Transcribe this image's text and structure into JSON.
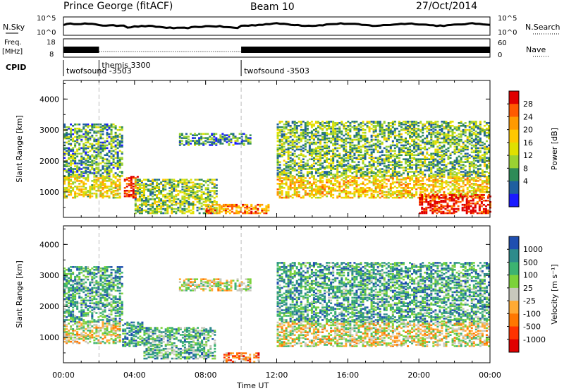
{
  "header": {
    "station": "Prince George (fitACF)",
    "beam": "Beam 10",
    "date": "27/Oct/2014"
  },
  "status_panels": {
    "nsky": {
      "left_label": "N.Sky",
      "right_label": "N.Search",
      "ticks_left": [
        "10^5",
        "10^0"
      ],
      "ticks_right": [
        "10^5",
        "10^0"
      ]
    },
    "freq": {
      "left_label_1": "Freq.",
      "left_label_2": "[MHz]",
      "right_label": "Nave",
      "ticks_left": [
        "18",
        "8"
      ],
      "ticks_right": [
        "60",
        "0"
      ]
    },
    "cpid": {
      "label": "CPID",
      "segments": [
        {
          "name": "twofsound -3503",
          "start": 0,
          "end": 2
        },
        {
          "name": "themis 3300",
          "start": 2,
          "end": 10
        },
        {
          "name": "twofsound -3503",
          "start": 10,
          "end": 24
        }
      ]
    }
  },
  "chart_data": [
    {
      "type": "heatmap",
      "title": "",
      "xlabel": "Time UT",
      "ylabel": "Slant Range [km]",
      "xlim": [
        0,
        24
      ],
      "ylim": [
        180,
        4600
      ],
      "x_tick_labels": [
        "00:00",
        "04:00",
        "08:00",
        "12:00",
        "16:00",
        "20:00",
        "00:00"
      ],
      "x_tick_values": [
        0,
        4,
        8,
        12,
        16,
        20,
        24
      ],
      "y_tick_values": [
        1000,
        2000,
        3000,
        4000
      ],
      "colorbar": {
        "label": "Power [dB]",
        "ticks": [
          "28",
          "24",
          "20",
          "16",
          "12",
          "8",
          "4"
        ],
        "colors": [
          "#e00000",
          "#ff5a00",
          "#ff9a00",
          "#ffc800",
          "#e0e000",
          "#9ad232",
          "#2e8b57",
          "#1f5fa0",
          "#1a1aff"
        ]
      },
      "regions": [
        {
          "t0": 0.0,
          "t1": 3.2,
          "r0": 800,
          "r1": 1500,
          "level": 0.55
        },
        {
          "t0": 0.0,
          "t1": 3.3,
          "r0": 1500,
          "r1": 3200,
          "level": 0.3
        },
        {
          "t0": 3.4,
          "t1": 4.2,
          "r0": 800,
          "r1": 1500,
          "level": 0.9
        },
        {
          "t0": 4.0,
          "t1": 8.6,
          "r0": 300,
          "r1": 1400,
          "level": 0.4
        },
        {
          "t0": 6.5,
          "t1": 10.5,
          "r0": 2500,
          "r1": 2900,
          "level": 0.25
        },
        {
          "t0": 8.0,
          "t1": 11.5,
          "r0": 300,
          "r1": 600,
          "level": 0.75
        },
        {
          "t0": 12.0,
          "t1": 24.0,
          "r0": 800,
          "r1": 1500,
          "level": 0.6
        },
        {
          "t0": 12.0,
          "t1": 24.0,
          "r0": 1500,
          "r1": 3300,
          "level": 0.35
        },
        {
          "t0": 20.0,
          "t1": 24.0,
          "r0": 300,
          "r1": 900,
          "level": 0.95
        }
      ]
    },
    {
      "type": "heatmap",
      "title": "",
      "xlabel": "Time UT",
      "ylabel": "Slant Range [km]",
      "xlim": [
        0,
        24
      ],
      "ylim": [
        180,
        4600
      ],
      "x_tick_labels": [
        "00:00",
        "04:00",
        "08:00",
        "12:00",
        "16:00",
        "20:00",
        "00:00"
      ],
      "x_tick_values": [
        0,
        4,
        8,
        12,
        16,
        20,
        24
      ],
      "y_tick_values": [
        1000,
        2000,
        3000,
        4000
      ],
      "colorbar": {
        "label": "Velocity",
        "unit": "[m s⁻¹]",
        "ticks": [
          "1000",
          "500",
          "100",
          "25",
          "-25",
          "-100",
          "-500",
          "-1000"
        ],
        "colors": [
          "#1f4fb0",
          "#2e8b8b",
          "#3cb371",
          "#7cd23a",
          "#c8c8bc",
          "#ffaa33",
          "#ff7700",
          "#ff3300",
          "#e00000"
        ]
      },
      "regions": [
        {
          "t0": 0.0,
          "t1": 3.2,
          "r0": 800,
          "r1": 1500,
          "level": 0.5
        },
        {
          "t0": 0.0,
          "t1": 3.3,
          "r0": 1500,
          "r1": 3300,
          "level": 0.75
        },
        {
          "t0": 3.3,
          "t1": 4.5,
          "r0": 700,
          "r1": 1500,
          "level": 0.8
        },
        {
          "t0": 4.5,
          "t1": 8.5,
          "r0": 300,
          "r1": 1300,
          "level": 0.7
        },
        {
          "t0": 6.5,
          "t1": 10.5,
          "r0": 2500,
          "r1": 2900,
          "level": 0.5
        },
        {
          "t0": 9.0,
          "t1": 11.0,
          "r0": 200,
          "r1": 500,
          "level": 0.3
        },
        {
          "t0": 12.0,
          "t1": 24.0,
          "r0": 700,
          "r1": 1500,
          "level": 0.5
        },
        {
          "t0": 12.0,
          "t1": 24.0,
          "r0": 1500,
          "r1": 3400,
          "level": 0.75
        }
      ]
    }
  ]
}
